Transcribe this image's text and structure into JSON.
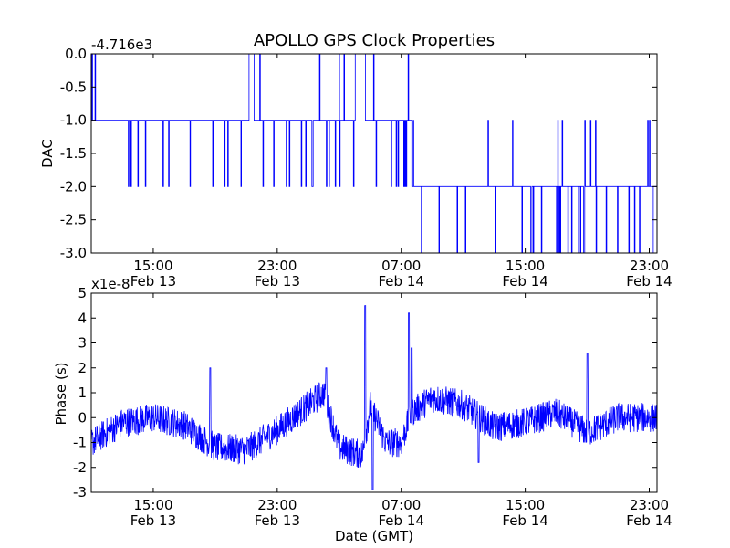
{
  "chart_data": [
    {
      "type": "line",
      "title": "APOLLO GPS Clock Properties",
      "ylabel": "DAC",
      "xlabel": "",
      "offset_label": "-4.716e3",
      "ylim": [
        -3.0,
        0.0
      ],
      "xlim": [
        "Feb 13 11:00",
        "Feb 14 23:30"
      ],
      "yticks": [
        "-3.0",
        "-2.5",
        "-2.0",
        "-1.5",
        "-1.0",
        "-0.5",
        "0.0"
      ],
      "xticks": [
        {
          "time": "15:00",
          "date": "Feb 13"
        },
        {
          "time": "23:00",
          "date": "Feb 13"
        },
        {
          "time": "07:00",
          "date": "Feb 14"
        },
        {
          "time": "15:00",
          "date": "Feb 14"
        },
        {
          "time": "23:00",
          "date": "Feb 14"
        }
      ],
      "grid": false,
      "color": "#0000ff",
      "segments": [
        {
          "from": "Feb 13 11:00",
          "to": "Feb 13 11:20",
          "value": -1.0,
          "note": "noisy 0 to -1"
        },
        {
          "from": "Feb 13 11:20",
          "to": "Feb 13 21:10",
          "value": -1.0
        },
        {
          "from": "Feb 13 21:10",
          "to": "Feb 13 21:30",
          "value": 0.0
        },
        {
          "from": "Feb 13 21:30",
          "to": "Feb 14 04:00",
          "value": -1.0
        },
        {
          "from": "Feb 14 04:00",
          "to": "Feb 14 04:40",
          "value": 0.0
        },
        {
          "from": "Feb 14 04:40",
          "to": "Feb 14 07:40",
          "value": -1.0
        },
        {
          "from": "Feb 14 07:40",
          "to": "Feb 14 12:00",
          "value": -2.0
        },
        {
          "from": "Feb 14 12:00",
          "to": "Feb 14 23:30",
          "value": -2.0
        }
      ]
    },
    {
      "type": "line",
      "title": "",
      "ylabel": "Phase (s)",
      "xlabel": "Date (GMT)",
      "offset_label": "x1e-8",
      "ylim": [
        -3,
        5
      ],
      "xlim": [
        "Feb 13 11:00",
        "Feb 14 23:30"
      ],
      "yticks": [
        "-3",
        "-2",
        "-1",
        "0",
        "1",
        "2",
        "3",
        "4",
        "5"
      ],
      "xticks": [
        {
          "time": "15:00",
          "date": "Feb 13"
        },
        {
          "time": "23:00",
          "date": "Feb 13"
        },
        {
          "time": "07:00",
          "date": "Feb 14"
        },
        {
          "time": "15:00",
          "date": "Feb 14"
        },
        {
          "time": "23:00",
          "date": "Feb 14"
        }
      ],
      "grid": false,
      "color": "#0000ff",
      "trend": [
        {
          "x": "Feb 13 11:00",
          "y": -1.0
        },
        {
          "x": "Feb 13 13:00",
          "y": -0.2
        },
        {
          "x": "Feb 13 15:00",
          "y": 0.0
        },
        {
          "x": "Feb 13 17:00",
          "y": -0.3
        },
        {
          "x": "Feb 13 19:00",
          "y": -1.2
        },
        {
          "x": "Feb 13 21:00",
          "y": -1.3
        },
        {
          "x": "Feb 13 23:00",
          "y": -0.5
        },
        {
          "x": "Feb 14 01:00",
          "y": 0.5
        },
        {
          "x": "Feb 14 02:00",
          "y": 1.0
        },
        {
          "x": "Feb 14 03:00",
          "y": -1.2
        },
        {
          "x": "Feb 14 04:30",
          "y": -1.5
        },
        {
          "x": "Feb 14 05:00",
          "y": 0.5
        },
        {
          "x": "Feb 14 06:00",
          "y": -1.0
        },
        {
          "x": "Feb 14 07:00",
          "y": -1.0
        },
        {
          "x": "Feb 14 07:40",
          "y": 0.2
        },
        {
          "x": "Feb 14 09:00",
          "y": 0.8
        },
        {
          "x": "Feb 14 11:00",
          "y": 0.5
        },
        {
          "x": "Feb 14 13:00",
          "y": -0.4
        },
        {
          "x": "Feb 14 15:00",
          "y": -0.2
        },
        {
          "x": "Feb 14 17:00",
          "y": 0.2
        },
        {
          "x": "Feb 14 19:00",
          "y": -0.6
        },
        {
          "x": "Feb 14 21:00",
          "y": 0.0
        },
        {
          "x": "Feb 14 23:30",
          "y": 0.0
        }
      ],
      "spikes": [
        {
          "x": "Feb 13 18:40",
          "y": 2.0
        },
        {
          "x": "Feb 14 02:10",
          "y": 2.0
        },
        {
          "x": "Feb 14 04:40",
          "y": 4.5
        },
        {
          "x": "Feb 14 05:10",
          "y": -2.9
        },
        {
          "x": "Feb 14 07:30",
          "y": 4.2
        },
        {
          "x": "Feb 14 07:40",
          "y": 2.8
        },
        {
          "x": "Feb 14 19:00",
          "y": 2.6
        },
        {
          "x": "Feb 14 12:00",
          "y": -1.8
        }
      ]
    }
  ]
}
